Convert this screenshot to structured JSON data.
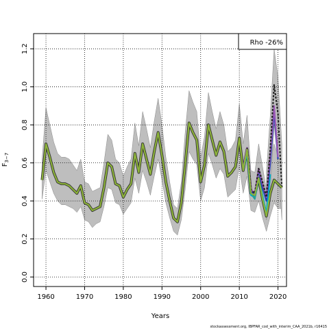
{
  "chart_data": {
    "type": "line",
    "xlabel": "Years",
    "ylabel": "F3-7",
    "ylabel_main": "F",
    "ylabel_sub": "3−7",
    "xlim": [
      1956.8,
      2022.2
    ],
    "ylim": [
      -0.05,
      1.28
    ],
    "xticks": [
      1960,
      1970,
      1980,
      1990,
      2000,
      2010,
      2020
    ],
    "yticks": [
      0.0,
      0.2,
      0.4,
      0.6,
      0.8,
      1.0,
      1.2
    ],
    "ytick_labels": [
      "0.0",
      "0.2",
      "0.4",
      "0.6",
      "0.8",
      "1.0",
      "1.2"
    ],
    "grid": true,
    "legend_text": "Rho -26%",
    "legend_position": "top-right",
    "footer": "stockassessment.org, IBPFAR_cod_with_interim_CAA_2021b, r16415",
    "band_color": "#bebebe",
    "series": [
      {
        "role": "main",
        "color": "#8db33a",
        "x": [
          1959,
          1960,
          1961,
          1962,
          1963,
          1964,
          1965,
          1966,
          1967,
          1968,
          1969,
          1970,
          1971,
          1972,
          1973,
          1974,
          1975,
          1976,
          1977,
          1978,
          1979,
          1980,
          1981,
          1982,
          1983,
          1984,
          1985,
          1986,
          1987,
          1988,
          1989,
          1990,
          1991,
          1992,
          1993,
          1994,
          1995,
          1996,
          1997,
          1998,
          1999,
          2000,
          2001,
          2002,
          2003,
          2004,
          2005,
          2006,
          2007,
          2008,
          2009,
          2010,
          2011,
          2012,
          2013,
          2014,
          2015,
          2016,
          2017,
          2018,
          2019,
          2020,
          2021
        ],
        "y": [
          0.51,
          0.7,
          0.63,
          0.55,
          0.5,
          0.49,
          0.49,
          0.48,
          0.46,
          0.44,
          0.48,
          0.39,
          0.38,
          0.35,
          0.36,
          0.37,
          0.47,
          0.6,
          0.58,
          0.49,
          0.48,
          0.42,
          0.46,
          0.49,
          0.65,
          0.55,
          0.7,
          0.62,
          0.54,
          0.66,
          0.76,
          0.64,
          0.5,
          0.4,
          0.31,
          0.29,
          0.39,
          0.59,
          0.81,
          0.76,
          0.72,
          0.5,
          0.59,
          0.8,
          0.72,
          0.64,
          0.71,
          0.66,
          0.53,
          0.55,
          0.58,
          0.73,
          0.56,
          0.67,
          0.44,
          0.43,
          0.52,
          0.41,
          0.32,
          0.44,
          0.51,
          0.49,
          0.47
        ],
        "upper": [
          0.62,
          0.89,
          0.8,
          0.71,
          0.65,
          0.63,
          0.63,
          0.62,
          0.59,
          0.56,
          0.62,
          0.5,
          0.49,
          0.45,
          0.46,
          0.47,
          0.6,
          0.75,
          0.72,
          0.62,
          0.6,
          0.53,
          0.58,
          0.62,
          0.81,
          0.69,
          0.87,
          0.78,
          0.68,
          0.82,
          0.94,
          0.8,
          0.63,
          0.5,
          0.38,
          0.36,
          0.5,
          0.76,
          0.98,
          0.92,
          0.87,
          0.63,
          0.74,
          0.97,
          0.87,
          0.78,
          0.87,
          0.8,
          0.66,
          0.68,
          0.72,
          0.91,
          0.7,
          0.85,
          0.56,
          0.55,
          0.7,
          0.58,
          0.46,
          0.6,
          0.7,
          0.64,
          0.6
        ],
        "lower": [
          0.41,
          0.56,
          0.5,
          0.44,
          0.4,
          0.38,
          0.38,
          0.37,
          0.36,
          0.34,
          0.37,
          0.3,
          0.29,
          0.26,
          0.28,
          0.29,
          0.37,
          0.47,
          0.46,
          0.39,
          0.38,
          0.33,
          0.36,
          0.39,
          0.52,
          0.44,
          0.56,
          0.5,
          0.43,
          0.53,
          0.62,
          0.51,
          0.39,
          0.31,
          0.24,
          0.22,
          0.3,
          0.46,
          0.66,
          0.62,
          0.59,
          0.4,
          0.47,
          0.65,
          0.59,
          0.52,
          0.57,
          0.54,
          0.42,
          0.44,
          0.46,
          0.58,
          0.44,
          0.53,
          0.35,
          0.34,
          0.4,
          0.31,
          0.24,
          0.32,
          0.39,
          0.36,
          0.36
        ]
      },
      {
        "role": "peel",
        "color": "#00b4c8",
        "x": [
          2011,
          2012,
          2013,
          2014,
          2015,
          2016,
          2017,
          2018
        ],
        "y": [
          0.56,
          0.65,
          0.43,
          0.42,
          0.52,
          0.43,
          0.33,
          0.54
        ]
      },
      {
        "role": "peel",
        "color": "#2aa198",
        "x": [
          2011,
          2012,
          2013,
          2014,
          2015,
          2016,
          2017
        ],
        "y": [
          0.56,
          0.66,
          0.44,
          0.41,
          0.52,
          0.41,
          0.32
        ]
      },
      {
        "role": "peel",
        "color": "#1f3fb5",
        "x": [
          2011,
          2012,
          2013,
          2014,
          2015,
          2016,
          2017,
          2018,
          2019,
          2020
        ],
        "y": [
          0.57,
          0.67,
          0.45,
          0.43,
          0.56,
          0.47,
          0.4,
          0.6,
          0.87,
          0.62
        ]
      },
      {
        "role": "peel",
        "color": "#9b59b6",
        "x": [
          2011,
          2012,
          2013,
          2014,
          2015,
          2016,
          2017,
          2018,
          2019,
          2020
        ],
        "y": [
          0.57,
          0.68,
          0.46,
          0.44,
          0.57,
          0.49,
          0.42,
          0.64,
          0.9,
          0.63
        ]
      },
      {
        "role": "peel",
        "color": "#222222",
        "dashed": true,
        "x": [
          2012,
          2013,
          2014,
          2015,
          2016,
          2017,
          2018,
          2019,
          2020,
          2021
        ],
        "y": [
          0.68,
          0.46,
          0.44,
          0.57,
          0.5,
          0.42,
          0.67,
          1.01,
          0.86,
          0.47
        ]
      }
    ],
    "peel_band": {
      "color": "#bebebe",
      "x": [
        2017,
        2018,
        2019,
        2020,
        2021
      ],
      "upper": [
        0.55,
        0.85,
        1.2,
        1.05,
        0.7
      ],
      "lower": [
        0.3,
        0.45,
        0.8,
        0.6,
        0.3
      ]
    }
  }
}
